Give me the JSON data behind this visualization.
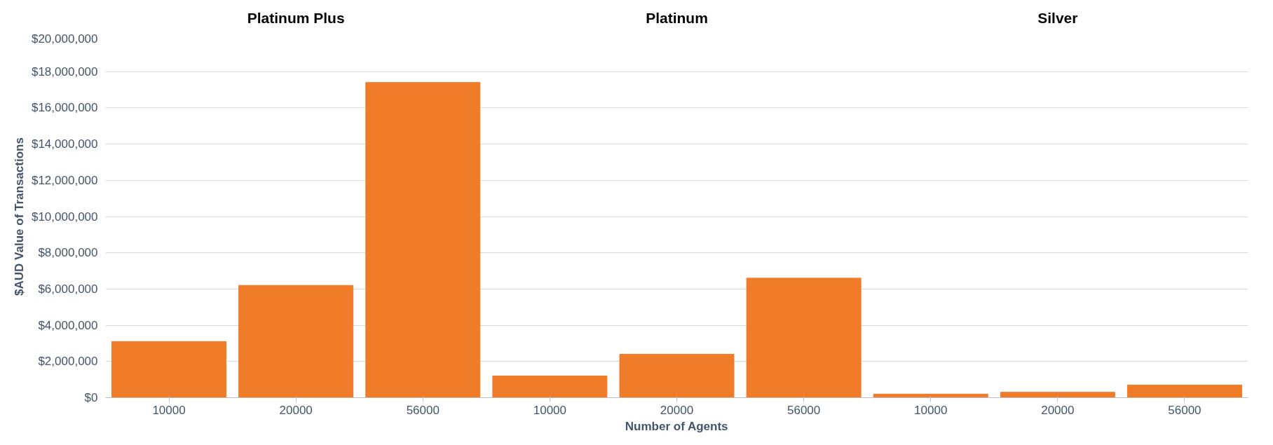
{
  "chart_data": {
    "type": "bar",
    "xlabel": "Number of Agents",
    "ylabel": "$AUD Value of Transactions",
    "categories": [
      "10000",
      "20000",
      "56000",
      "10000",
      "20000",
      "56000",
      "10000",
      "20000",
      "56000"
    ],
    "values": [
      3100000,
      6200000,
      17400000,
      1200000,
      2400000,
      6600000,
      200000,
      300000,
      700000
    ],
    "color": "#f07c2a",
    "annotations": [
      "Platinum Plus",
      "Platinum",
      "Silver"
    ],
    "ylim": [
      0,
      20000000
    ],
    "yticks": [
      {
        "value": 0,
        "label": "$0"
      },
      {
        "value": 2000000,
        "label": "$2,000,000"
      },
      {
        "value": 4000000,
        "label": "$4,000,000"
      },
      {
        "value": 6000000,
        "label": "$6,000,000"
      },
      {
        "value": 8000000,
        "label": "$8,000,000"
      },
      {
        "value": 10000000,
        "label": "$10,000,000"
      },
      {
        "value": 12000000,
        "label": "$12,000,000"
      },
      {
        "value": 14000000,
        "label": "$14,000,000"
      },
      {
        "value": 16000000,
        "label": "$16,000,000"
      },
      {
        "value": 18000000,
        "label": "$18,000,000"
      },
      {
        "value": 20000000,
        "label": "$20,000,000"
      }
    ],
    "grid": "y"
  }
}
